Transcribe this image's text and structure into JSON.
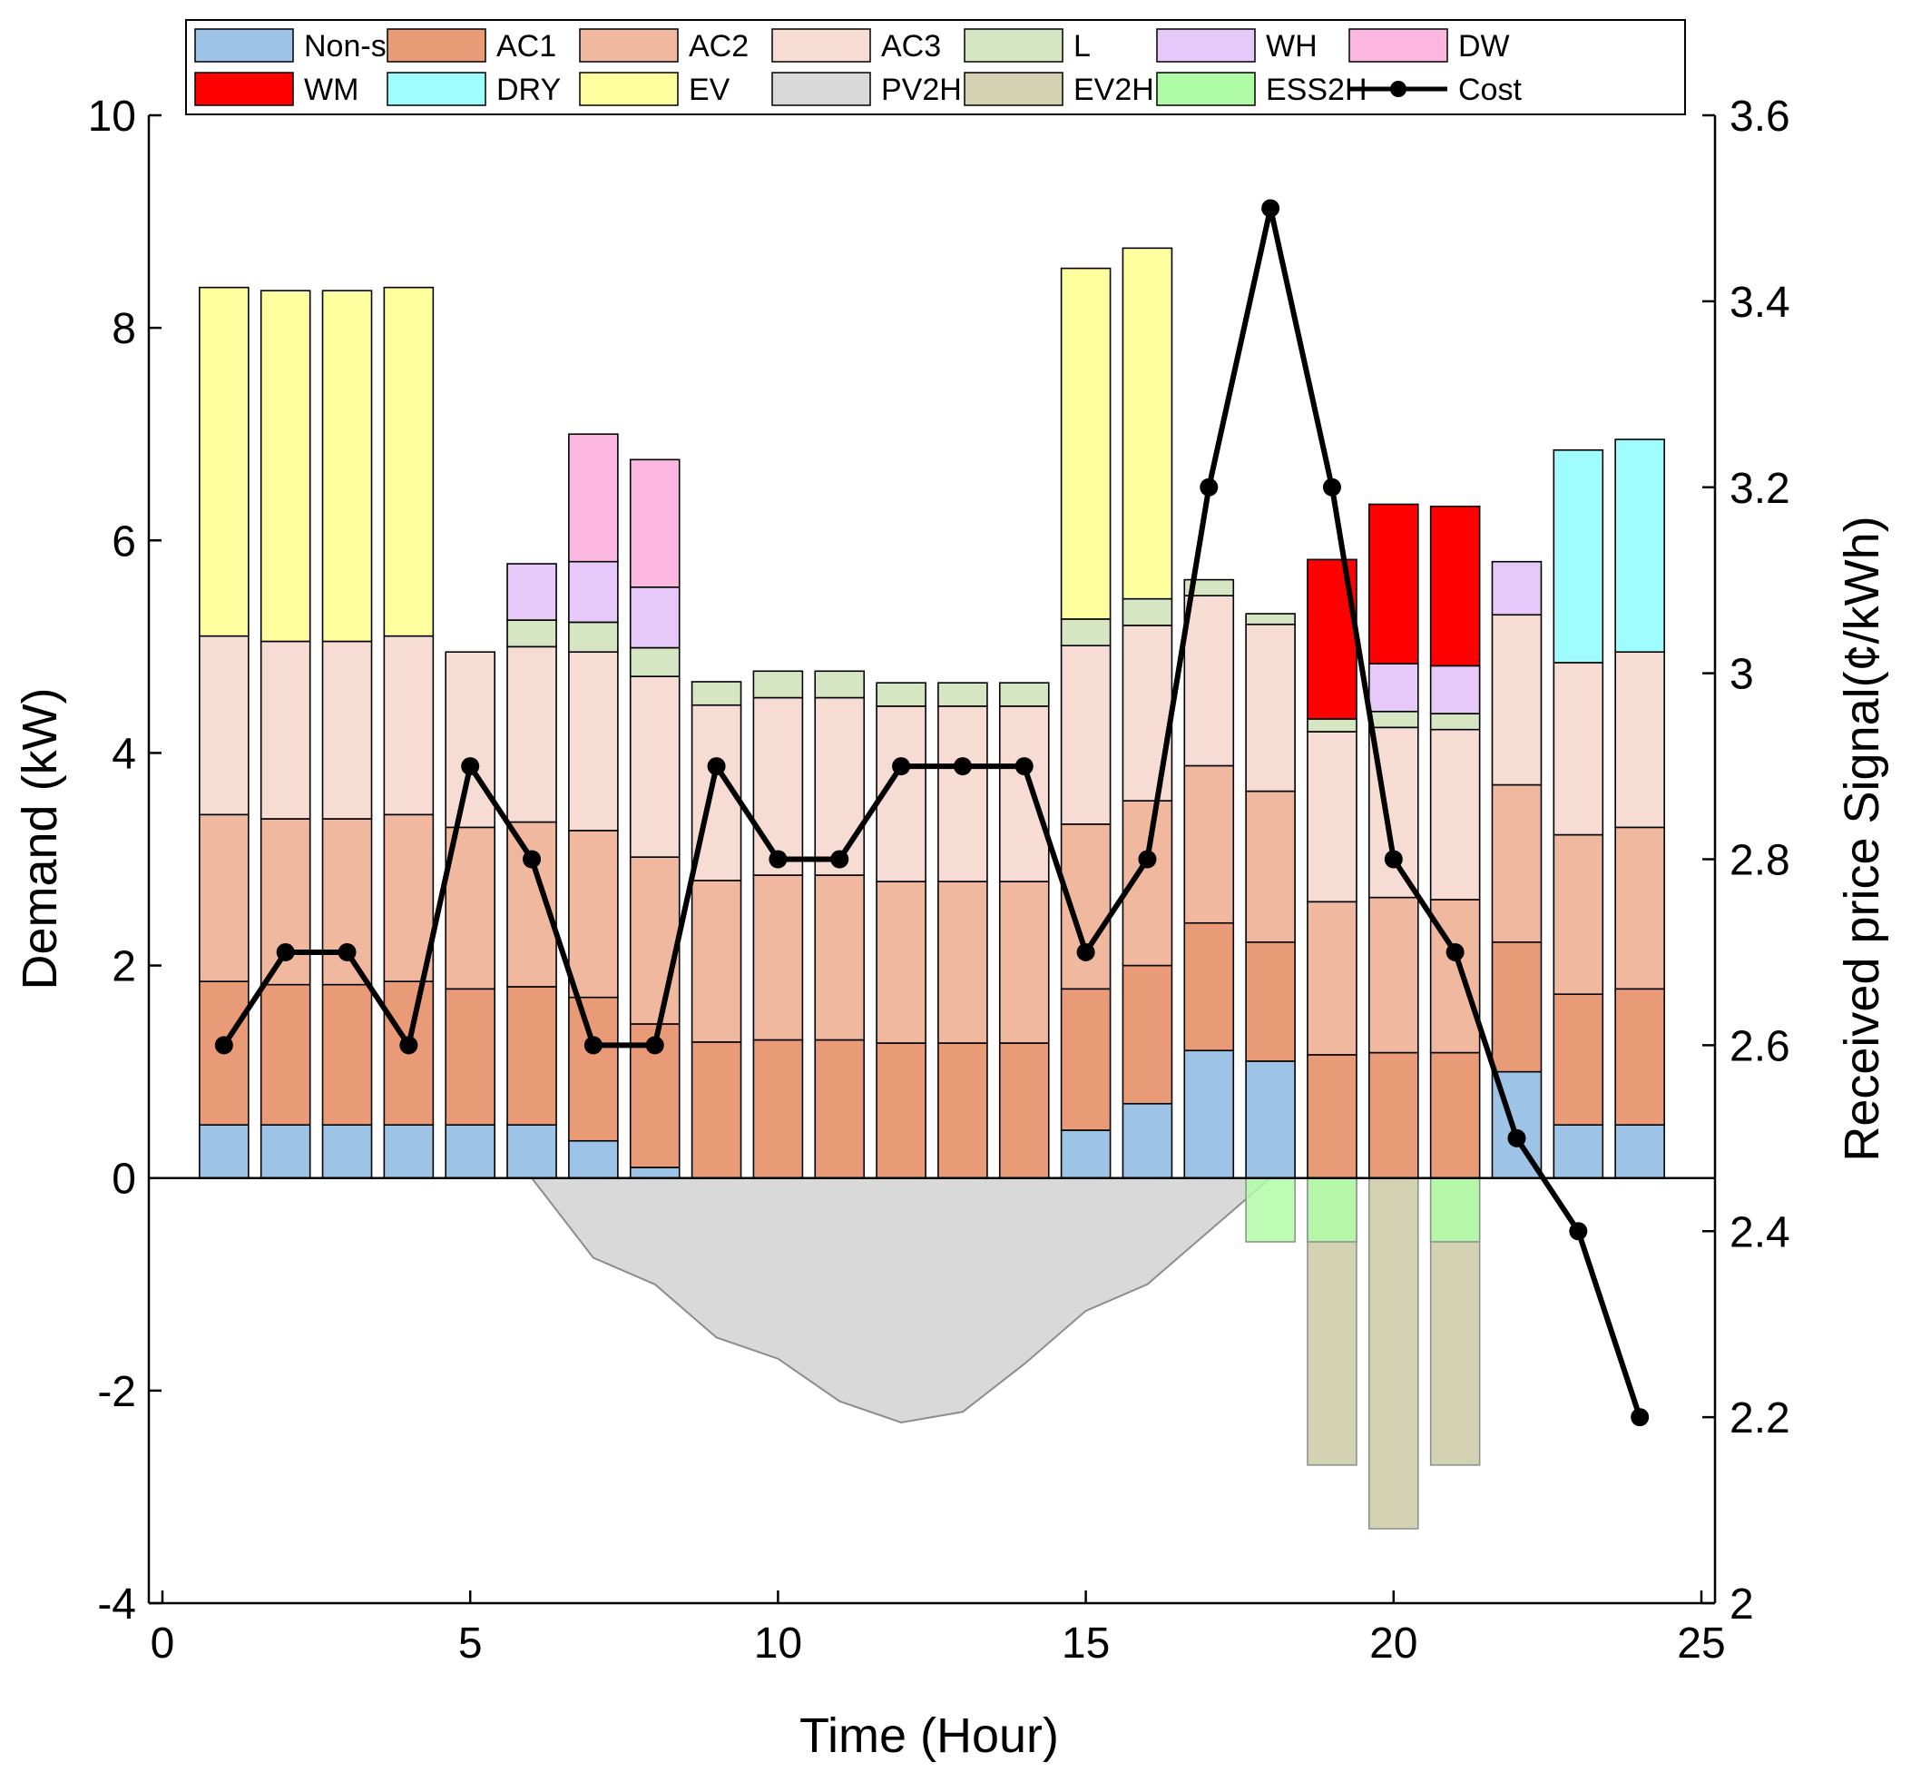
{
  "chart_data": {
    "type": "bar",
    "subtype": "stacked-bar-with-line",
    "xlabel": "Time (Hour)",
    "ylabel": "Demand (kW)",
    "y2label": "Received price Signal(¢/kWh)",
    "xlim": [
      0,
      25
    ],
    "ylim": [
      -4,
      10
    ],
    "y2lim": [
      2,
      3.6
    ],
    "xticks": [
      "0",
      "5",
      "10",
      "15",
      "20",
      "25"
    ],
    "yticks": [
      "-4",
      "-2",
      "0",
      "2",
      "4",
      "6",
      "8",
      "10"
    ],
    "y2ticks": [
      "2",
      "2.2",
      "2.4",
      "2.6",
      "2.8",
      "3",
      "3.2",
      "3.4",
      "3.6"
    ],
    "hours": [
      1,
      2,
      3,
      4,
      5,
      6,
      7,
      8,
      9,
      10,
      11,
      12,
      13,
      14,
      15,
      16,
      17,
      18,
      19,
      20,
      21,
      22,
      23,
      24
    ],
    "legend_position": "top",
    "series": [
      {
        "name": "Non-shift",
        "key": "nonshift",
        "color": "#9dc3e6",
        "values": [
          0.5,
          0.5,
          0.5,
          0.5,
          0.5,
          0.5,
          0.35,
          0.1,
          0,
          0,
          0,
          0,
          0,
          0,
          0.45,
          0.7,
          1.2,
          1.1,
          0,
          0,
          0,
          1.0,
          0.5,
          0.5
        ]
      },
      {
        "name": "AC1",
        "key": "ac1",
        "color": "#e99b77",
        "values": [
          1.35,
          1.32,
          1.32,
          1.35,
          1.28,
          1.3,
          1.35,
          1.35,
          1.28,
          1.3,
          1.3,
          1.27,
          1.27,
          1.27,
          1.33,
          1.3,
          1.2,
          1.12,
          1.16,
          1.18,
          1.18,
          1.22,
          1.23,
          1.28
        ]
      },
      {
        "name": "AC2",
        "key": "ac2",
        "color": "#f1b8a0",
        "values": [
          1.57,
          1.56,
          1.56,
          1.57,
          1.52,
          1.55,
          1.57,
          1.57,
          1.52,
          1.55,
          1.55,
          1.52,
          1.52,
          1.52,
          1.55,
          1.55,
          1.48,
          1.42,
          1.44,
          1.46,
          1.44,
          1.48,
          1.5,
          1.52
        ]
      },
      {
        "name": "AC3",
        "key": "ac3",
        "color": "#f6dcd2",
        "values": [
          1.68,
          1.67,
          1.67,
          1.68,
          1.65,
          1.65,
          1.68,
          1.7,
          1.65,
          1.67,
          1.67,
          1.65,
          1.65,
          1.65,
          1.68,
          1.65,
          1.6,
          1.57,
          1.6,
          1.6,
          1.6,
          1.6,
          1.62,
          1.65
        ]
      },
      {
        "name": "L",
        "key": "l",
        "color": "#d6e6c3",
        "values": [
          0,
          0,
          0,
          0,
          0,
          0.25,
          0.28,
          0.27,
          0.22,
          0.25,
          0.25,
          0.22,
          0.22,
          0.22,
          0.25,
          0.25,
          0.15,
          0.1,
          0.12,
          0.15,
          0.15,
          0,
          0,
          0
        ]
      },
      {
        "name": "WH",
        "key": "wh",
        "color": "#e6c8f9",
        "values": [
          0,
          0,
          0,
          0,
          0,
          0.53,
          0.57,
          0.57,
          0,
          0,
          0,
          0,
          0,
          0,
          0,
          0,
          0,
          0,
          0,
          0.45,
          0.45,
          0.5,
          0,
          0
        ]
      },
      {
        "name": "DW",
        "key": "dw",
        "color": "#fbb7e0",
        "values": [
          0,
          0,
          0,
          0,
          0,
          0,
          1.2,
          1.2,
          0,
          0,
          0,
          0,
          0,
          0,
          0,
          0,
          0,
          0,
          0,
          0,
          0,
          0,
          0,
          0
        ]
      },
      {
        "name": "WM",
        "key": "wm",
        "color": "#ff0000",
        "values": [
          0,
          0,
          0,
          0,
          0,
          0,
          0,
          0,
          0,
          0,
          0,
          0,
          0,
          0,
          0,
          0,
          0,
          0,
          1.5,
          1.5,
          1.5,
          0,
          0,
          0
        ]
      },
      {
        "name": "DRY",
        "key": "dry",
        "color": "#9ffcff",
        "values": [
          0,
          0,
          0,
          0,
          0,
          0,
          0,
          0,
          0,
          0,
          0,
          0,
          0,
          0,
          0,
          0,
          0,
          0,
          0,
          0,
          0,
          0,
          2.0,
          2.0
        ]
      },
      {
        "name": "EV",
        "key": "ev",
        "color": "#ffff9f",
        "values": [
          3.28,
          3.3,
          3.3,
          3.28,
          0,
          0,
          0,
          0,
          0,
          0,
          0,
          0,
          0,
          0,
          3.3,
          3.3,
          0,
          0,
          0,
          0,
          0,
          0,
          0,
          0
        ]
      },
      {
        "name": "PV2H",
        "key": "pv2h",
        "color": "#d9d9d9",
        "values": [
          0,
          0,
          0,
          0,
          0,
          0,
          -0.75,
          -1.0,
          -1.5,
          -1.7,
          -2.1,
          -2.3,
          -2.2,
          -1.75,
          -1.25,
          -1.0,
          -0.5,
          0,
          0,
          0,
          0,
          0,
          0,
          0
        ]
      },
      {
        "name": "EV2H",
        "key": "ev2h",
        "color": "#d3d3b3",
        "values": [
          0,
          0,
          0,
          0,
          0,
          0,
          0,
          0,
          0,
          0,
          0,
          0,
          0,
          0,
          0,
          0,
          0,
          0,
          -2.7,
          -3.3,
          -2.7,
          0,
          0,
          0
        ]
      },
      {
        "name": "ESS2H",
        "key": "ess2h",
        "color": "#b0fca6",
        "values": [
          0,
          0,
          0,
          0,
          0,
          0,
          0,
          0,
          0,
          0,
          0,
          0,
          0,
          0,
          0,
          0,
          0,
          -0.6,
          -0.6,
          0,
          -0.6,
          0,
          0,
          0
        ]
      },
      {
        "name": "Cost",
        "key": "cost",
        "color": "#000000",
        "axis": "right",
        "values": [
          2.6,
          2.7,
          2.7,
          2.6,
          2.9,
          2.8,
          2.6,
          2.6,
          2.9,
          2.8,
          2.8,
          2.9,
          2.9,
          2.9,
          2.7,
          2.8,
          3.2,
          3.5,
          3.2,
          2.8,
          2.7,
          2.5,
          2.4,
          2.2
        ]
      }
    ],
    "legend": [
      {
        "label": "Non-shift",
        "color": "#9dc3e6"
      },
      {
        "label": "AC1",
        "color": "#e99b77"
      },
      {
        "label": "AC2",
        "color": "#f1b8a0"
      },
      {
        "label": "AC3",
        "color": "#f6dcd2"
      },
      {
        "label": "L",
        "color": "#d6e6c3"
      },
      {
        "label": "WH",
        "color": "#e6c8f9"
      },
      {
        "label": "DW",
        "color": "#fbb7e0"
      },
      {
        "label": "WM",
        "color": "#ff0000"
      },
      {
        "label": "DRY",
        "color": "#9ffcff"
      },
      {
        "label": "EV",
        "color": "#ffff9f"
      },
      {
        "label": "PV2H",
        "color": "#d9d9d9"
      },
      {
        "label": "EV2H",
        "color": "#d3d3b3"
      },
      {
        "label": "ESS2H",
        "color": "#b0fca6"
      },
      {
        "label": "Cost",
        "color": "#000000",
        "kind": "line"
      }
    ]
  }
}
